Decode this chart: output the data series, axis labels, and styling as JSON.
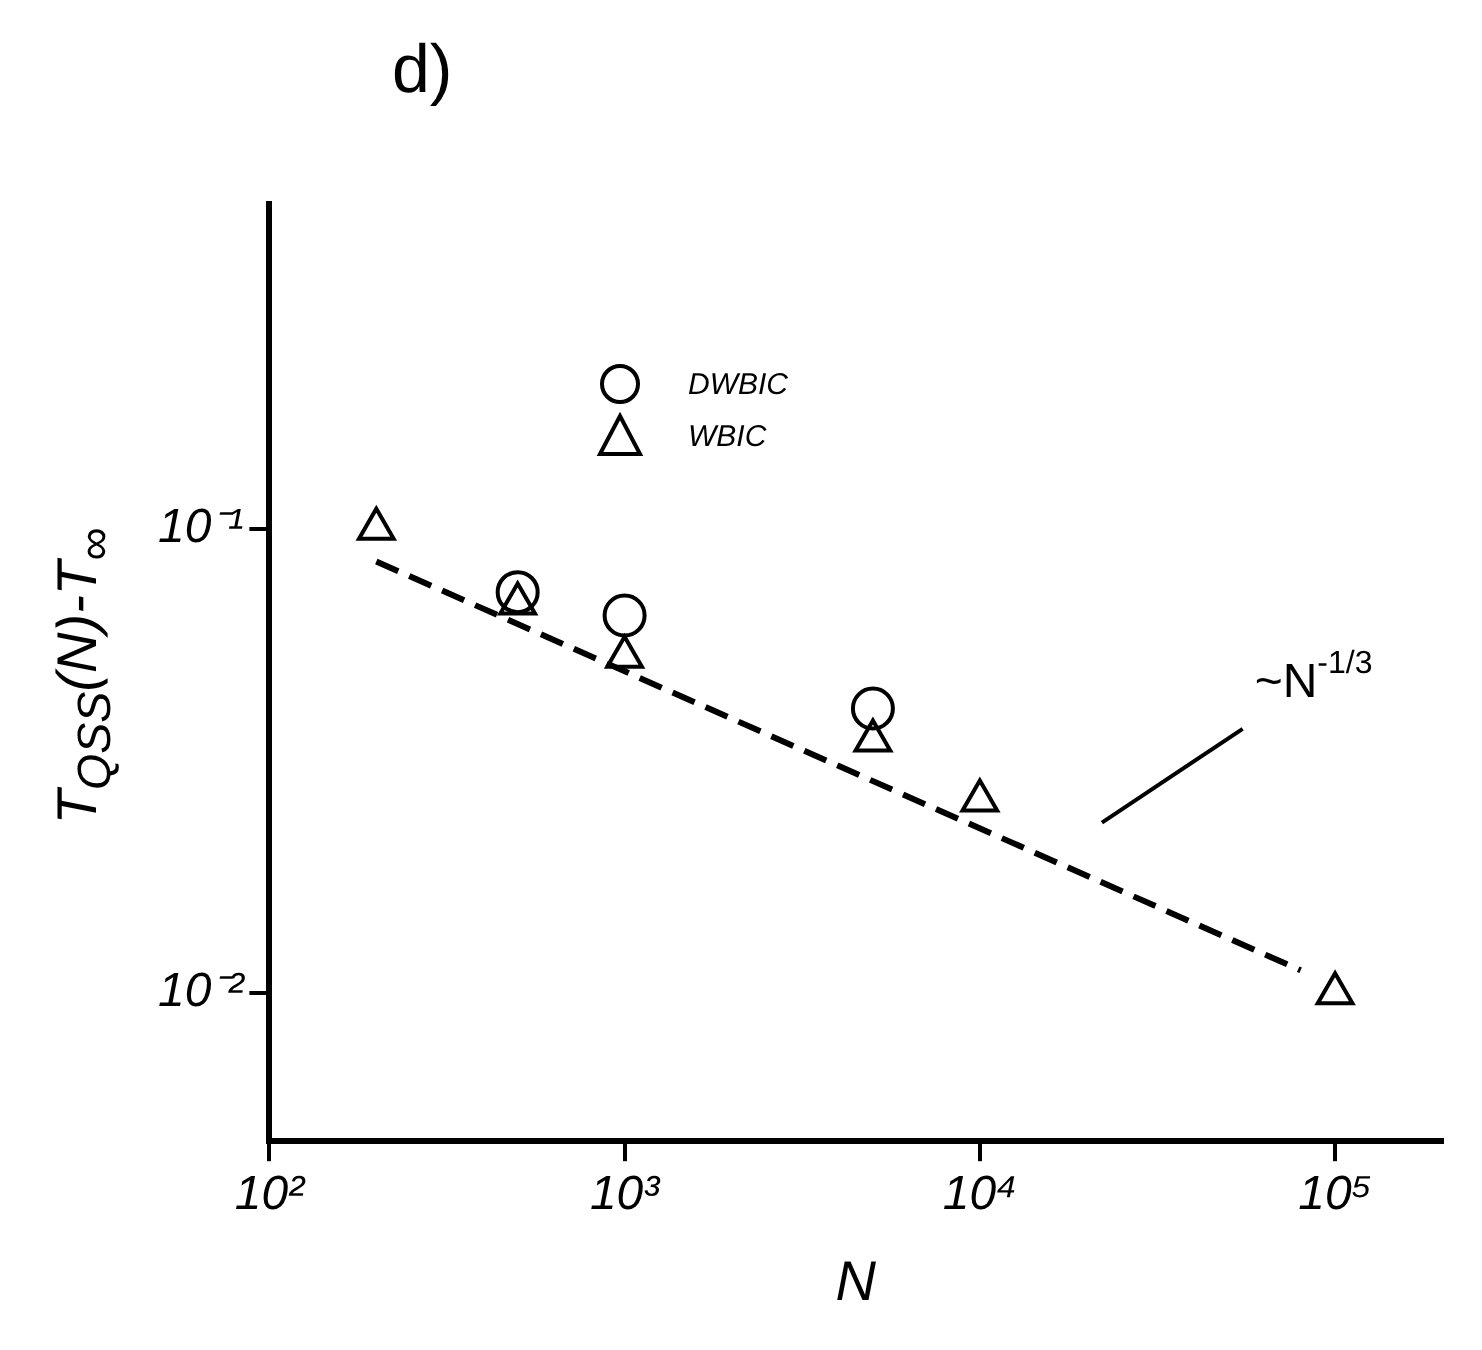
{
  "chart_data": {
    "type": "scatter",
    "title": "d)",
    "xlabel": "N",
    "ylabel": "T$_{QSS}$(N)-T$_{∞}$",
    "log": "xy",
    "grid": false,
    "legend": "top",
    "xlim": [
      100,
      200000
    ],
    "ylim": [
      0.0048,
      0.5
    ],
    "xticks": [
      {
        "value": 100,
        "label": "10²"
      },
      {
        "value": 1000,
        "label": "10³"
      },
      {
        "value": 10000,
        "label": "10⁴"
      },
      {
        "value": 100000,
        "label": "10⁵"
      }
    ],
    "yticks": [
      {
        "value": 0.1,
        "label": "10⁻¹"
      },
      {
        "value": 0.01,
        "label": "10⁻²"
      }
    ],
    "series": [
      {
        "name": "DWBIC",
        "color": "#000000",
        "marker": "circle",
        "x": [
          500,
          1000,
          5000
        ],
        "values": [
          0.073,
          0.065,
          0.041
        ]
      },
      {
        "name": "WBIC",
        "color": "#000000",
        "marker": "triangle",
        "x": [
          200,
          500,
          1000,
          5000,
          10000,
          100000
        ],
        "values": [
          0.1,
          0.069,
          0.053,
          0.035,
          0.026,
          0.01
        ]
      },
      {
        "type": "line",
        "color": "#000000",
        "marker": "none",
        "line_style": "dashed",
        "x": [
          200,
          80000
        ],
        "values": [
          0.085,
          0.0112
        ]
      }
    ],
    "annotations": [
      "~N$^{-1/3}$"
    ]
  }
}
